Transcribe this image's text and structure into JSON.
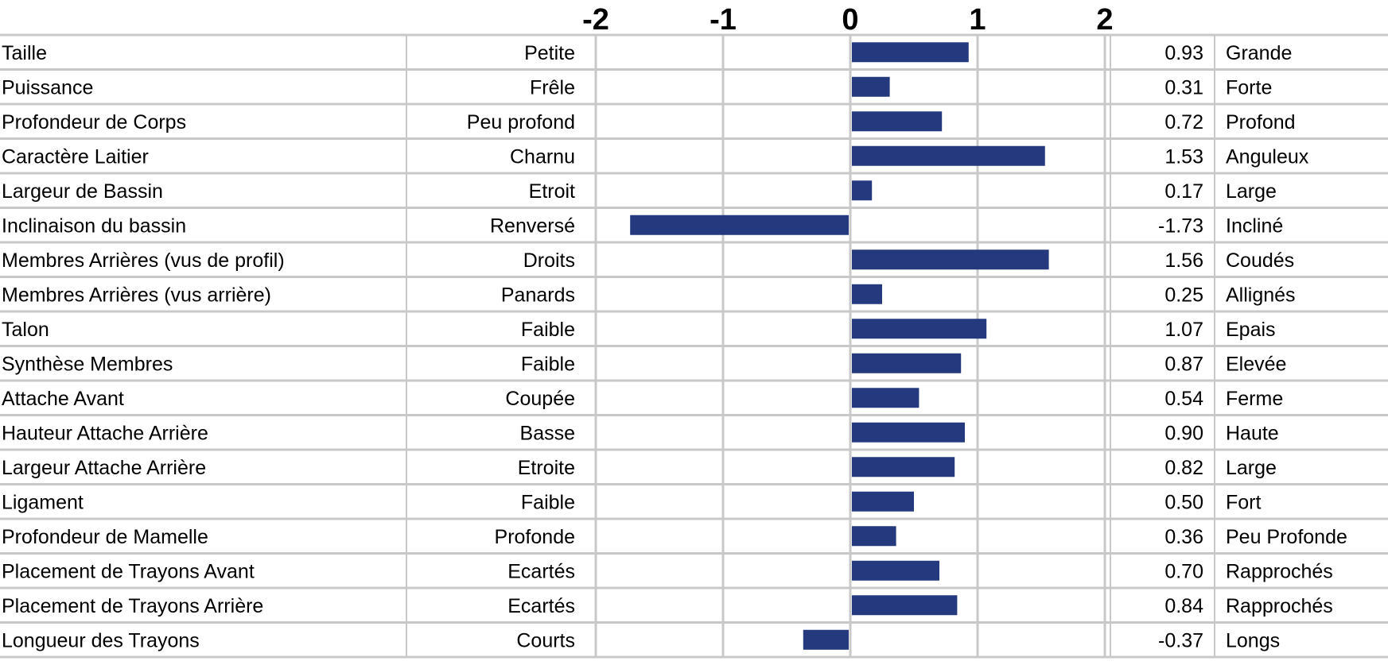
{
  "chart_data": {
    "type": "bar",
    "orientation": "horizontal",
    "title": "",
    "xlabel": "",
    "ylabel": "",
    "xlim": [
      -2,
      2
    ],
    "x_ticks": [
      "-2",
      "-1",
      "0",
      "1",
      "2"
    ],
    "grid": true,
    "legend": "none",
    "bar_color": "#253a7e",
    "rows": [
      {
        "trait": "Taille",
        "low": "Petite",
        "value": 0.93,
        "value_label": "0.93",
        "high": "Grande"
      },
      {
        "trait": "Puissance",
        "low": "Frêle",
        "value": 0.31,
        "value_label": "0.31",
        "high": "Forte"
      },
      {
        "trait": "Profondeur de Corps",
        "low": "Peu profond",
        "value": 0.72,
        "value_label": "0.72",
        "high": "Profond"
      },
      {
        "trait": "Caractère Laitier",
        "low": "Charnu",
        "value": 1.53,
        "value_label": "1.53",
        "high": "Anguleux"
      },
      {
        "trait": "Largeur de Bassin",
        "low": "Etroit",
        "value": 0.17,
        "value_label": "0.17",
        "high": "Large"
      },
      {
        "trait": "Inclinaison du bassin",
        "low": "Renversé",
        "value": -1.73,
        "value_label": "-1.73",
        "high": "Incliné"
      },
      {
        "trait": "Membres Arrières (vus de profil)",
        "low": "Droits",
        "value": 1.56,
        "value_label": "1.56",
        "high": "Coudés"
      },
      {
        "trait": "Membres Arrières (vus arrière)",
        "low": "Panards",
        "value": 0.25,
        "value_label": "0.25",
        "high": "Allignés"
      },
      {
        "trait": "Talon",
        "low": "Faible",
        "value": 1.07,
        "value_label": "1.07",
        "high": "Epais"
      },
      {
        "trait": "Synthèse Membres",
        "low": "Faible",
        "value": 0.87,
        "value_label": "0.87",
        "high": "Elevée"
      },
      {
        "trait": "Attache Avant",
        "low": "Coupée",
        "value": 0.54,
        "value_label": "0.54",
        "high": "Ferme"
      },
      {
        "trait": "Hauteur Attache Arrière",
        "low": "Basse",
        "value": 0.9,
        "value_label": "0.90",
        "high": "Haute"
      },
      {
        "trait": "Largeur Attache Arrière",
        "low": "Etroite",
        "value": 0.82,
        "value_label": "0.82",
        "high": "Large"
      },
      {
        "trait": "Ligament",
        "low": "Faible",
        "value": 0.5,
        "value_label": "0.50",
        "high": "Fort"
      },
      {
        "trait": "Profondeur de Mamelle",
        "low": "Profonde",
        "value": 0.36,
        "value_label": "0.36",
        "high": "Peu Profonde"
      },
      {
        "trait": "Placement de Trayons Avant",
        "low": "Ecartés",
        "value": 0.7,
        "value_label": "0.70",
        "high": "Rapprochés"
      },
      {
        "trait": "Placement de Trayons Arrière",
        "low": "Ecartés",
        "value": 0.84,
        "value_label": "0.84",
        "high": "Rapprochés"
      },
      {
        "trait": "Longueur des Trayons",
        "low": "Courts",
        "value": -0.37,
        "value_label": "-0.37",
        "high": "Longs"
      }
    ]
  }
}
